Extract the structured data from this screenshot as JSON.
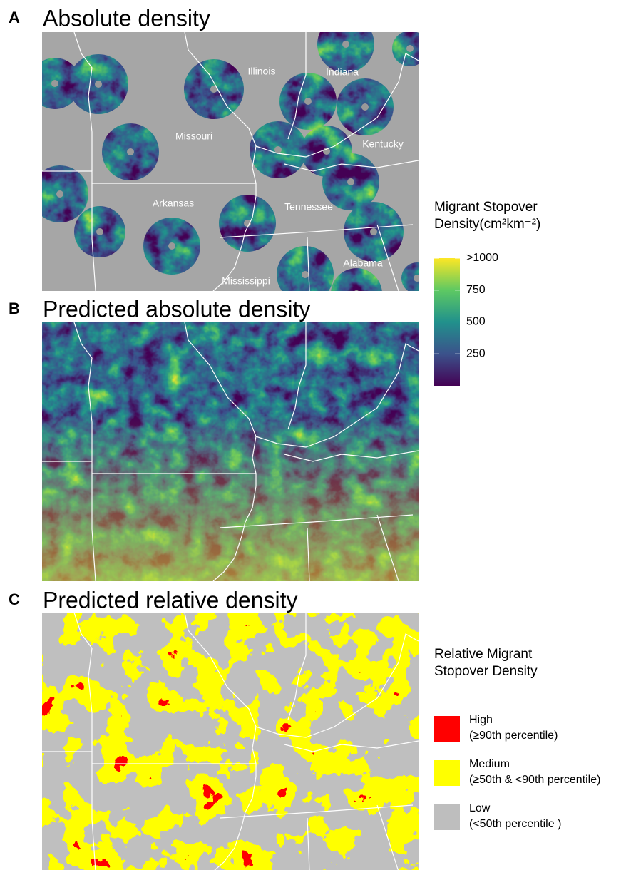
{
  "panels": [
    {
      "letter": "A",
      "title": "Absolute density",
      "labels": [
        "Illinois",
        "Indiana",
        "Missouri",
        "Kentucky",
        "Arkansas",
        "Tennessee",
        "Alabama",
        "Mississippi"
      ]
    },
    {
      "letter": "B",
      "title": "Predicted absolute density"
    },
    {
      "letter": "C",
      "title": "Predicted relative density"
    }
  ],
  "density_legend": {
    "title": [
      "Migrant Stopover",
      "Density(cm²km⁻²)"
    ],
    "lim": [
      0,
      1000
    ],
    "ticks": [
      250,
      500,
      750,
      {
        "value": 1000,
        "label": ">1000"
      }
    ]
  },
  "relative_legend": {
    "title": [
      "Relative Migrant",
      "Stopover Density"
    ],
    "items": [
      {
        "label": "High",
        "detail": "(≥90th percentile)",
        "color": "#ff0000"
      },
      {
        "label": "Medium",
        "detail": "(≥50th & <90th percentile)",
        "color": "#ffff00"
      },
      {
        "label": "Low",
        "detail": "(<50th percentile )",
        "color": "#bebebe"
      }
    ]
  }
}
